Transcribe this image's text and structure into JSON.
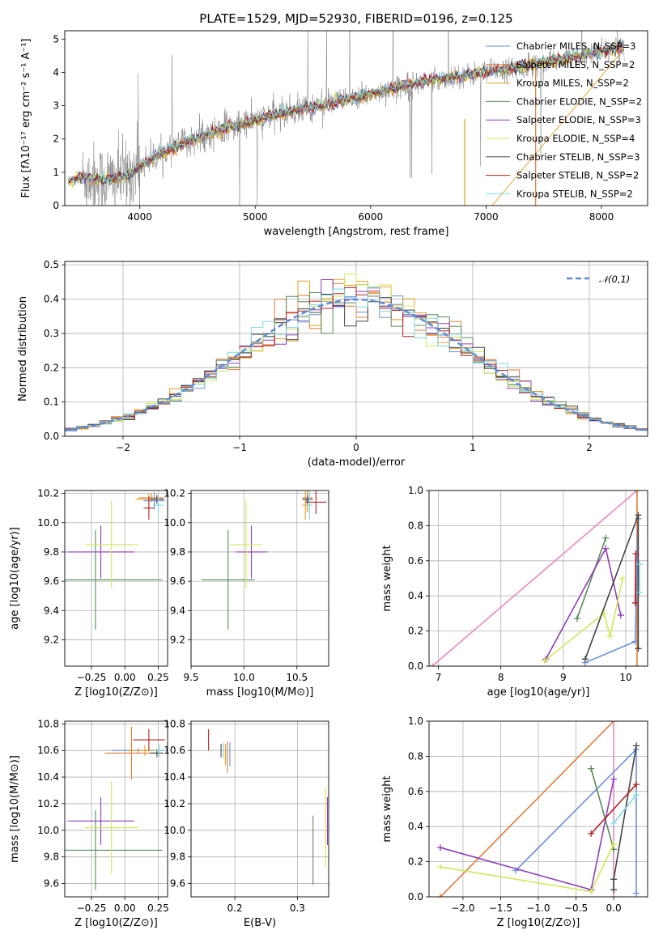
{
  "title": "PLATE=1529, MJD=52930, FIBERID=0196, z=0.125",
  "chart_data": [
    {
      "type": "line",
      "name": "spectrum",
      "xlabel": "wavelength [Angstrom, rest frame]",
      "ylabel": "Flux [fλ10⁻¹⁷ erg cm⁻² s⁻¹ A⁻¹]",
      "xlim": [
        3350,
        8400
      ],
      "ylim": [
        0,
        5.25
      ],
      "xticks": [
        4000,
        5000,
        6000,
        7000,
        8000
      ],
      "yticks": [
        0,
        1,
        2,
        3,
        4,
        5
      ],
      "grid": false,
      "legend_position": "top-right",
      "series": [
        {
          "name": "Chabrier MILES, N_SSP=3",
          "color": "#6a8fdb"
        },
        {
          "name": "Salpeter MILES, N_SSP=2",
          "color": "#e07b39"
        },
        {
          "name": "Kroupa MILES, N_SSP=2",
          "color": "#e3a020"
        },
        {
          "name": "Chabrier ELODIE, N_SSP=2",
          "color": "#5a8a5a"
        },
        {
          "name": "Salpeter ELODIE, N_SSP=3",
          "color": "#8e3fb8"
        },
        {
          "name": "Kroupa ELODIE, N_SSP=4",
          "color": "#d4e65a"
        },
        {
          "name": "Chabrier STELIB, N_SSP=3",
          "color": "#444444"
        },
        {
          "name": "Salpeter STELIB, N_SSP=2",
          "color": "#b22222"
        },
        {
          "name": "Kroupa STELIB, N_SSP=2",
          "color": "#7fd8e0"
        }
      ],
      "continuum": [
        [
          3350,
          0.7
        ],
        [
          3500,
          0.85
        ],
        [
          3700,
          0.75
        ],
        [
          3900,
          0.9
        ],
        [
          4000,
          1.2
        ],
        [
          4200,
          1.6
        ],
        [
          4400,
          1.9
        ],
        [
          4600,
          2.15
        ],
        [
          4800,
          2.4
        ],
        [
          5000,
          2.55
        ],
        [
          5200,
          2.75
        ],
        [
          5500,
          2.95
        ],
        [
          5800,
          3.2
        ],
        [
          6000,
          3.35
        ],
        [
          6300,
          3.6
        ],
        [
          6600,
          3.8
        ],
        [
          6900,
          3.95
        ],
        [
          7200,
          4.1
        ],
        [
          7500,
          4.3
        ],
        [
          7800,
          4.5
        ],
        [
          8100,
          4.7
        ],
        [
          8200,
          4.8
        ]
      ]
    },
    {
      "type": "histogram",
      "name": "residuals",
      "xlabel": "(data-model)/error",
      "ylabel": "Normed distribution",
      "xlim": [
        -2.5,
        2.5
      ],
      "ylim": [
        0,
        0.51
      ],
      "xticks": [
        -2,
        -1,
        0,
        1,
        2
      ],
      "yticks": [
        0.0,
        0.1,
        0.2,
        0.3,
        0.4,
        0.5
      ],
      "grid": true,
      "legend_position": "top-right",
      "reference_curve": {
        "name": "𝒩(0,1)",
        "mean": 0,
        "sigma": 1,
        "color": "#5a8ad6"
      },
      "bins": 50
    },
    {
      "type": "scatter",
      "name": "age-vs-Z",
      "xlabel": "Z [log10(Z/Z⊙)]",
      "ylabel": "age  [log10(age/yr)]",
      "xlim": [
        -0.45,
        0.32
      ],
      "ylim": [
        9.02,
        10.22
      ],
      "xticks": [
        -0.25,
        0.0,
        0.25
      ],
      "yticks": [
        9.2,
        9.4,
        9.6,
        9.8,
        10.0,
        10.2
      ],
      "grid": true,
      "points": [
        {
          "x": 0.22,
          "y": 10.15,
          "xerr": 0.08,
          "yerr": 0.06,
          "color": "#6a8fdb"
        },
        {
          "x": 0.2,
          "y": 10.17,
          "xerr": 0.1,
          "yerr": 0.03,
          "color": "#e07b39"
        },
        {
          "x": 0.18,
          "y": 10.16,
          "xerr": 0.1,
          "yerr": 0.04,
          "color": "#e3a020"
        },
        {
          "x": -0.22,
          "y": 9.61,
          "xerr": 0.5,
          "yerr": 0.34,
          "color": "#5a8a5a"
        },
        {
          "x": -0.18,
          "y": 9.8,
          "xerr": 0.25,
          "yerr": 0.18,
          "color": "#8e3fb8"
        },
        {
          "x": -0.1,
          "y": 9.85,
          "xerr": 0.2,
          "yerr": 0.3,
          "color": "#d4e65a"
        },
        {
          "x": 0.24,
          "y": 10.16,
          "xerr": 0.05,
          "yerr": 0.03,
          "color": "#444444"
        },
        {
          "x": 0.18,
          "y": 10.1,
          "xerr": 0.04,
          "yerr": 0.08,
          "color": "#b22222"
        },
        {
          "x": 0.25,
          "y": 10.12,
          "xerr": 0.04,
          "yerr": 0.06,
          "color": "#7fd8e0"
        }
      ]
    },
    {
      "type": "scatter",
      "name": "age-vs-mass",
      "xlabel": "mass [log10(M/M⊙)]",
      "ylabel": "",
      "xlim": [
        9.5,
        10.8
      ],
      "ylim": [
        9.02,
        10.22
      ],
      "xticks": [
        9.5,
        10.0,
        10.5
      ],
      "yticks": [
        9.2,
        9.4,
        9.6,
        9.8,
        10.0,
        10.2
      ],
      "grid": true,
      "points": [
        {
          "x": 10.6,
          "y": 10.15,
          "xerr": 0.02,
          "yerr": 0.03,
          "color": "#6a8fdb"
        },
        {
          "x": 10.6,
          "y": 10.17,
          "xerr": 0.05,
          "yerr": 0.1,
          "color": "#e07b39"
        },
        {
          "x": 10.58,
          "y": 10.12,
          "xerr": 0.03,
          "yerr": 0.1,
          "color": "#e3a020"
        },
        {
          "x": 9.85,
          "y": 9.61,
          "xerr": 0.25,
          "yerr": 0.34,
          "color": "#5a8a5a"
        },
        {
          "x": 10.07,
          "y": 9.8,
          "xerr": 0.15,
          "yerr": 0.18,
          "color": "#8e3fb8"
        },
        {
          "x": 10.02,
          "y": 9.85,
          "xerr": 0.15,
          "yerr": 0.3,
          "color": "#d4e65a"
        },
        {
          "x": 10.6,
          "y": 10.16,
          "xerr": 0.05,
          "yerr": 0.03,
          "color": "#444444"
        },
        {
          "x": 10.68,
          "y": 10.14,
          "xerr": 0.1,
          "yerr": 0.08,
          "color": "#b22222"
        },
        {
          "x": 10.62,
          "y": 10.12,
          "xerr": 0.03,
          "yerr": 0.1,
          "color": "#7fd8e0"
        }
      ]
    },
    {
      "type": "line",
      "name": "massweight-vs-age",
      "xlabel": "age  [log10(age/yr)]",
      "ylabel": "mass weight",
      "xlim": [
        6.85,
        10.35
      ],
      "ylim": [
        0,
        1
      ],
      "xticks": [
        7,
        8,
        9,
        10
      ],
      "yticks": [
        0.0,
        0.2,
        0.4,
        0.6,
        0.8,
        1.0
      ],
      "grid": true,
      "series": [
        {
          "color": "#e88ac0",
          "points": [
            [
              6.9,
              0.0
            ],
            [
              10.18,
              1.0
            ]
          ]
        },
        {
          "color": "#e07b39",
          "points": [
            [
              10.18,
              0.0
            ],
            [
              10.18,
              1.0
            ]
          ]
        },
        {
          "color": "#6a8fdb",
          "points": [
            [
              9.35,
              0.02
            ],
            [
              10.15,
              0.14
            ],
            [
              10.2,
              0.84
            ]
          ]
        },
        {
          "color": "#5a8a5a",
          "points": [
            [
              9.22,
              0.27
            ],
            [
              9.68,
              0.73
            ]
          ]
        },
        {
          "color": "#8e3fb8",
          "points": [
            [
              8.72,
              0.04
            ],
            [
              9.68,
              0.67
            ],
            [
              9.92,
              0.29
            ]
          ]
        },
        {
          "color": "#d4e65a",
          "points": [
            [
              8.7,
              0.03
            ],
            [
              9.65,
              0.3
            ],
            [
              9.75,
              0.17
            ],
            [
              9.95,
              0.5
            ]
          ]
        },
        {
          "color": "#444444",
          "points": [
            [
              9.35,
              0.04
            ],
            [
              10.2,
              0.86
            ],
            [
              10.2,
              0.1
            ]
          ]
        },
        {
          "color": "#b22222",
          "points": [
            [
              10.15,
              0.36
            ],
            [
              10.16,
              0.64
            ]
          ]
        },
        {
          "color": "#7fd8e0",
          "points": [
            [
              10.22,
              0.42
            ],
            [
              10.22,
              0.58
            ]
          ]
        }
      ]
    },
    {
      "type": "scatter",
      "name": "mass-vs-Z",
      "xlabel": "Z [log10(Z/Z⊙)]",
      "ylabel": "mass [log10(M/M⊙)]",
      "xlim": [
        -0.45,
        0.32
      ],
      "ylim": [
        9.5,
        10.82
      ],
      "xticks": [
        -0.25,
        0.0,
        0.25
      ],
      "yticks": [
        9.6,
        9.8,
        10.0,
        10.2,
        10.4,
        10.6,
        10.8
      ],
      "grid": true,
      "points": [
        {
          "x": 0.1,
          "y": 10.6,
          "xerr": 0.2,
          "yerr": 0.02,
          "color": "#6a8fdb"
        },
        {
          "x": 0.05,
          "y": 10.58,
          "xerr": 0.2,
          "yerr": 0.2,
          "color": "#e07b39"
        },
        {
          "x": 0.15,
          "y": 10.6,
          "xerr": 0.12,
          "yerr": 0.04,
          "color": "#e3a020"
        },
        {
          "x": -0.22,
          "y": 9.85,
          "xerr": 0.5,
          "yerr": 0.3,
          "color": "#5a8a5a"
        },
        {
          "x": -0.18,
          "y": 10.07,
          "xerr": 0.25,
          "yerr": 0.18,
          "color": "#8e3fb8"
        },
        {
          "x": -0.1,
          "y": 10.02,
          "xerr": 0.2,
          "yerr": 0.35,
          "color": "#d4e65a"
        },
        {
          "x": 0.24,
          "y": 10.58,
          "xerr": 0.05,
          "yerr": 0.03,
          "color": "#444444"
        },
        {
          "x": 0.18,
          "y": 10.68,
          "xerr": 0.12,
          "yerr": 0.08,
          "color": "#b22222"
        },
        {
          "x": 0.26,
          "y": 10.6,
          "xerr": 0.04,
          "yerr": 0.05,
          "color": "#7fd8e0"
        }
      ]
    },
    {
      "type": "scatter",
      "name": "mass-vs-EBV",
      "xlabel": "E(B-V)",
      "ylabel": "",
      "xlim": [
        0.13,
        0.35
      ],
      "ylim": [
        9.5,
        10.82
      ],
      "xticks": [
        0.2,
        0.3
      ],
      "yticks": [
        9.6,
        9.8,
        10.0,
        10.2,
        10.4,
        10.6,
        10.8
      ],
      "grid": true,
      "points": [
        {
          "x": 0.192,
          "y": 10.57,
          "yerr": 0.09,
          "color": "#6a8fdb"
        },
        {
          "x": 0.188,
          "y": 10.55,
          "yerr": 0.12,
          "color": "#e07b39"
        },
        {
          "x": 0.185,
          "y": 10.57,
          "yerr": 0.08,
          "color": "#e3a020"
        },
        {
          "x": 0.325,
          "y": 9.85,
          "yerr": 0.26,
          "color": "#5a8a5a"
        },
        {
          "x": 0.348,
          "y": 10.07,
          "yerr": 0.18,
          "color": "#8e3fb8"
        },
        {
          "x": 0.345,
          "y": 10.02,
          "yerr": 0.3,
          "color": "#d4e65a"
        },
        {
          "x": 0.178,
          "y": 10.6,
          "yerr": 0.05,
          "color": "#444444"
        },
        {
          "x": 0.158,
          "y": 10.68,
          "yerr": 0.08,
          "color": "#b22222"
        },
        {
          "x": 0.182,
          "y": 10.6,
          "yerr": 0.06,
          "color": "#7fd8e0"
        }
      ]
    },
    {
      "type": "line",
      "name": "massweight-vs-Z",
      "xlabel": "Z [log10(Z/Z⊙)]",
      "ylabel": "mass weight",
      "xlim": [
        -2.45,
        0.45
      ],
      "ylim": [
        0,
        1
      ],
      "xticks": [
        -2.0,
        -1.5,
        -1.0,
        -0.5,
        0.0
      ],
      "yticks": [
        0.0,
        0.2,
        0.4,
        0.6,
        0.8,
        1.0
      ],
      "grid": true,
      "series": [
        {
          "color": "#e07b39",
          "points": [
            [
              -2.3,
              0.0
            ],
            [
              0.0,
              1.0
            ]
          ]
        },
        {
          "color": "#e88ac0",
          "points": [
            [
              0.0,
              0.0
            ],
            [
              0.0,
              1.0
            ]
          ]
        },
        {
          "color": "#6a8fdb",
          "points": [
            [
              -1.3,
              0.15
            ],
            [
              0.3,
              0.84
            ],
            [
              0.3,
              0.02
            ]
          ]
        },
        {
          "color": "#5a8a5a",
          "points": [
            [
              -0.3,
              0.73
            ],
            [
              0.0,
              0.27
            ]
          ]
        },
        {
          "color": "#8e3fb8",
          "points": [
            [
              -2.3,
              0.28
            ],
            [
              -0.3,
              0.04
            ],
            [
              0.0,
              0.67
            ]
          ]
        },
        {
          "color": "#d4e65a",
          "points": [
            [
              -2.3,
              0.17
            ],
            [
              -0.3,
              0.03
            ],
            [
              0.0,
              0.3
            ]
          ]
        },
        {
          "color": "#444444",
          "points": [
            [
              0.0,
              0.04
            ],
            [
              0.0,
              0.1
            ],
            [
              0.3,
              0.86
            ]
          ]
        },
        {
          "color": "#b22222",
          "points": [
            [
              -0.3,
              0.36
            ],
            [
              0.3,
              0.64
            ]
          ]
        },
        {
          "color": "#7fd8e0",
          "points": [
            [
              0.0,
              0.42
            ],
            [
              0.3,
              0.58
            ]
          ]
        }
      ]
    }
  ]
}
